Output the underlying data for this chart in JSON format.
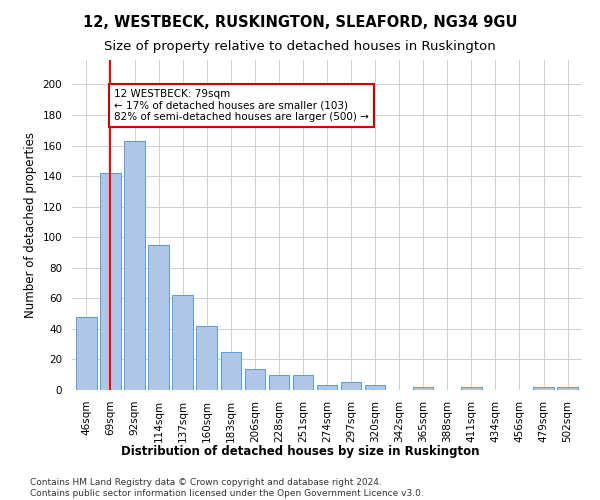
{
  "title1": "12, WESTBECK, RUSKINGTON, SLEAFORD, NG34 9GU",
  "title2": "Size of property relative to detached houses in Ruskington",
  "xlabel": "Distribution of detached houses by size in Ruskington",
  "ylabel": "Number of detached properties",
  "categories": [
    "46sqm",
    "69sqm",
    "92sqm",
    "114sqm",
    "137sqm",
    "160sqm",
    "183sqm",
    "206sqm",
    "228sqm",
    "251sqm",
    "274sqm",
    "297sqm",
    "320sqm",
    "342sqm",
    "365sqm",
    "388sqm",
    "411sqm",
    "434sqm",
    "456sqm",
    "479sqm",
    "502sqm"
  ],
  "values": [
    48,
    142,
    163,
    95,
    62,
    42,
    25,
    14,
    10,
    10,
    3,
    5,
    3,
    0,
    2,
    0,
    2,
    0,
    0,
    2,
    2
  ],
  "bar_color": "#aec6e8",
  "bar_edge_color": "#5b9bd5",
  "property_line_x": 1,
  "annotation_text": "12 WESTBECK: 79sqm\n← 17% of detached houses are smaller (103)\n82% of semi-detached houses are larger (500) →",
  "annotation_box_color": "#ffffff",
  "annotation_box_edge": "#cc0000",
  "red_line_color": "#ff0000",
  "grid_color": "#d0d0d0",
  "background_color": "#ffffff",
  "footer1": "Contains HM Land Registry data © Crown copyright and database right 2024.",
  "footer2": "Contains public sector information licensed under the Open Government Licence v3.0.",
  "title1_fontsize": 10.5,
  "title2_fontsize": 9.5,
  "axis_label_fontsize": 8.5,
  "tick_fontsize": 7.5,
  "annotation_fontsize": 7.5,
  "footer_fontsize": 6.5,
  "ylim_max": 200,
  "yticks": [
    0,
    20,
    40,
    60,
    80,
    100,
    120,
    140,
    160,
    180,
    200
  ]
}
